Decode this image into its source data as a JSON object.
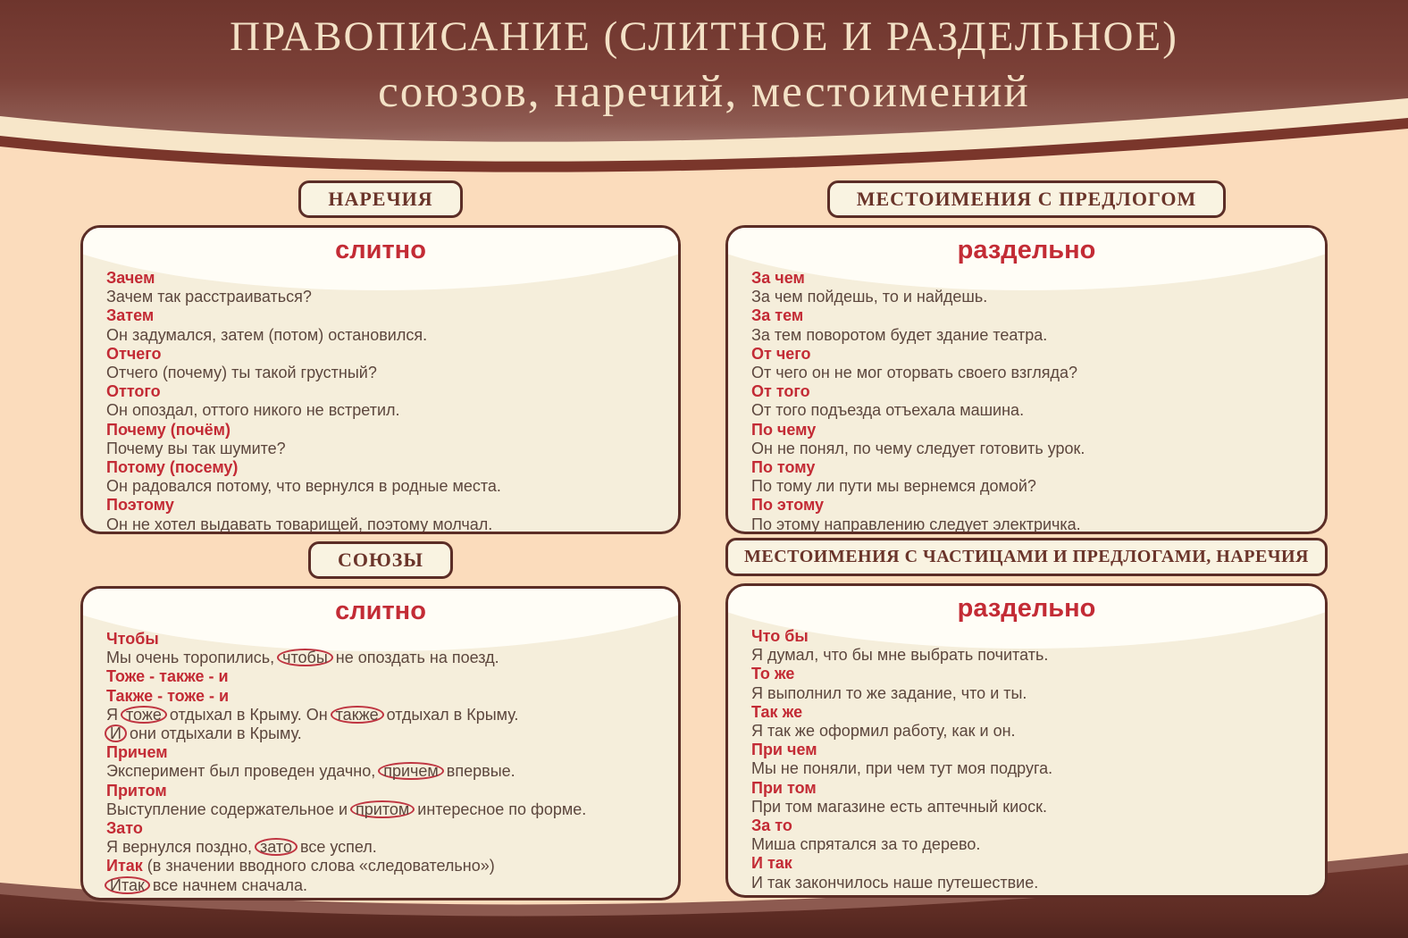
{
  "header": {
    "title_line1": "ПРАВОПИСАНИЕ (СЛИТНОЕ И РАЗДЕЛЬНОЕ)",
    "title_line2": "союзов, наречий, местоимений"
  },
  "colors": {
    "page_bg": "#fbdcbc",
    "band_maroon": "#7a3b31",
    "band_stripe_cream": "#f7e6c9",
    "panel_bg": "#f5eedb",
    "panel_sheen": "#fffdf6",
    "panel_border": "#5b2d26",
    "accent_red": "#c32b35",
    "text_brown": "#5c463d",
    "label_text": "#6a342a",
    "header_text": "#f3e1c6"
  },
  "sections": [
    {
      "label": "НАРЕЧИЯ",
      "panel_title": "слитно",
      "lines": [
        {
          "type": "term",
          "segments": [
            {
              "text": "Зачем"
            }
          ]
        },
        {
          "type": "example",
          "segments": [
            {
              "text": "Зачем так расстраиваться?"
            }
          ]
        },
        {
          "type": "term",
          "segments": [
            {
              "text": "Затем"
            }
          ]
        },
        {
          "type": "example",
          "segments": [
            {
              "text": "Он задумался, затем (потом) остановился."
            }
          ]
        },
        {
          "type": "term",
          "segments": [
            {
              "text": "Отчего"
            }
          ]
        },
        {
          "type": "example",
          "segments": [
            {
              "text": "Отчего (почему) ты такой грустный?"
            }
          ]
        },
        {
          "type": "term",
          "segments": [
            {
              "text": "Оттого"
            }
          ]
        },
        {
          "type": "example",
          "segments": [
            {
              "text": "Он опоздал, оттого никого не встретил."
            }
          ]
        },
        {
          "type": "term",
          "segments": [
            {
              "text": "Почему (почём)"
            }
          ]
        },
        {
          "type": "example",
          "segments": [
            {
              "text": "Почему вы так шумите?"
            }
          ]
        },
        {
          "type": "term",
          "segments": [
            {
              "text": "Потому (посему)"
            }
          ]
        },
        {
          "type": "example",
          "segments": [
            {
              "text": "Он радовался потому, что вернулся в родные места."
            }
          ]
        },
        {
          "type": "term",
          "segments": [
            {
              "text": "Поэтому"
            }
          ]
        },
        {
          "type": "example",
          "segments": [
            {
              "text": "Он не хотел выдавать товарищей, поэтому молчал."
            }
          ]
        }
      ]
    },
    {
      "label": "МЕСТОИМЕНИЯ С ПРЕДЛОГОМ",
      "panel_title": "раздельно",
      "lines": [
        {
          "type": "term",
          "segments": [
            {
              "text": "За чем"
            }
          ]
        },
        {
          "type": "example",
          "segments": [
            {
              "text": "За чем пойдешь, то и найдешь."
            }
          ]
        },
        {
          "type": "term",
          "segments": [
            {
              "text": "За тем"
            }
          ]
        },
        {
          "type": "example",
          "segments": [
            {
              "text": "За тем поворотом будет здание театра."
            }
          ]
        },
        {
          "type": "term",
          "segments": [
            {
              "text": "От чего"
            }
          ]
        },
        {
          "type": "example",
          "segments": [
            {
              "text": "От чего он не мог оторвать своего взгляда?"
            }
          ]
        },
        {
          "type": "term",
          "segments": [
            {
              "text": "От того"
            }
          ]
        },
        {
          "type": "example",
          "segments": [
            {
              "text": "От того подъезда отъехала машина."
            }
          ]
        },
        {
          "type": "term",
          "segments": [
            {
              "text": "По чему"
            }
          ]
        },
        {
          "type": "example",
          "segments": [
            {
              "text": "Он не понял, по чему следует готовить урок."
            }
          ]
        },
        {
          "type": "term",
          "segments": [
            {
              "text": "По тому"
            }
          ]
        },
        {
          "type": "example",
          "segments": [
            {
              "text": "По тому ли пути мы вернемся домой?"
            }
          ]
        },
        {
          "type": "term",
          "segments": [
            {
              "text": "По этому"
            }
          ]
        },
        {
          "type": "example",
          "segments": [
            {
              "text": "По этому направлению следует электричка."
            }
          ]
        }
      ]
    },
    {
      "label": "СОЮЗЫ",
      "panel_title": "слитно",
      "lines": [
        {
          "type": "term",
          "segments": [
            {
              "text": "Чтобы"
            }
          ]
        },
        {
          "type": "example",
          "segments": [
            {
              "text": "Мы очень торопились, "
            },
            {
              "text": "чтобы",
              "circled": true
            },
            {
              "text": " не опоздать на поезд."
            }
          ]
        },
        {
          "type": "term",
          "segments": [
            {
              "text": "Тоже - также - и"
            }
          ]
        },
        {
          "type": "term",
          "segments": [
            {
              "text": "Также - тоже - и"
            }
          ]
        },
        {
          "type": "example",
          "segments": [
            {
              "text": "Я "
            },
            {
              "text": "тоже",
              "circled": true
            },
            {
              "text": " отдыхал в Крыму. Он "
            },
            {
              "text": "также",
              "circled": true
            },
            {
              "text": " отдыхал в Крыму."
            }
          ]
        },
        {
          "type": "example",
          "segments": [
            {
              "text": "И",
              "circled": true
            },
            {
              "text": " они отдыхали в Крыму."
            }
          ]
        },
        {
          "type": "term",
          "segments": [
            {
              "text": "Причем"
            }
          ]
        },
        {
          "type": "example",
          "segments": [
            {
              "text": "Эксперимент был проведен удачно, "
            },
            {
              "text": "причем",
              "circled": true
            },
            {
              "text": " впервые."
            }
          ]
        },
        {
          "type": "term",
          "segments": [
            {
              "text": "Притом"
            }
          ]
        },
        {
          "type": "example",
          "segments": [
            {
              "text": "Выступление содержательное и "
            },
            {
              "text": "притом",
              "circled": true
            },
            {
              "text": " интересное по форме."
            }
          ]
        },
        {
          "type": "term",
          "segments": [
            {
              "text": "Зато"
            }
          ]
        },
        {
          "type": "example",
          "segments": [
            {
              "text": "Я вернулся поздно, "
            },
            {
              "text": "зато",
              "circled": true
            },
            {
              "text": " все успел."
            }
          ]
        },
        {
          "type": "example",
          "segments": [
            {
              "text": "Итак",
              "red": true
            },
            {
              "text": " (в значении вводного слова «следовательно»)"
            }
          ]
        },
        {
          "type": "example",
          "segments": [
            {
              "text": "Итак",
              "circled": true
            },
            {
              "text": " все начнем сначала."
            }
          ]
        }
      ]
    },
    {
      "label": "МЕСТОИМЕНИЯ С ЧАСТИЦАМИ И ПРЕДЛОГАМИ, НАРЕЧИЯ",
      "panel_title": "раздельно",
      "lines": [
        {
          "type": "term",
          "segments": [
            {
              "text": "Что бы"
            }
          ]
        },
        {
          "type": "example",
          "segments": [
            {
              "text": "Я думал, что бы мне выбрать почитать."
            }
          ]
        },
        {
          "type": "term",
          "segments": [
            {
              "text": "То же"
            }
          ]
        },
        {
          "type": "example",
          "segments": [
            {
              "text": "Я выполнил то же задание, что и ты."
            }
          ]
        },
        {
          "type": "term",
          "segments": [
            {
              "text": "Так же"
            }
          ]
        },
        {
          "type": "example",
          "segments": [
            {
              "text": "Я так же оформил работу, как и он."
            }
          ]
        },
        {
          "type": "term",
          "segments": [
            {
              "text": "При чем"
            }
          ]
        },
        {
          "type": "example",
          "segments": [
            {
              "text": "Мы не поняли, при чем тут моя подруга."
            }
          ]
        },
        {
          "type": "term",
          "segments": [
            {
              "text": "При том"
            }
          ]
        },
        {
          "type": "example",
          "segments": [
            {
              "text": "При том магазине есть аптечный киоск."
            }
          ]
        },
        {
          "type": "term",
          "segments": [
            {
              "text": "За то"
            }
          ]
        },
        {
          "type": "example",
          "segments": [
            {
              "text": "Миша спрятался за то дерево."
            }
          ]
        },
        {
          "type": "term",
          "segments": [
            {
              "text": "И так"
            }
          ]
        },
        {
          "type": "example",
          "segments": [
            {
              "text": "И так закончилось наше путешествие."
            }
          ]
        }
      ]
    }
  ]
}
